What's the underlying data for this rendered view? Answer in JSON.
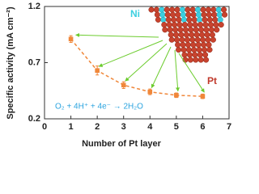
{
  "chart_data": {
    "type": "scatter",
    "x_label": "Number of Pt layer",
    "y_label": "Specific activity (mA cm⁻²)",
    "x": [
      1,
      2,
      3,
      4,
      5,
      6
    ],
    "series": [
      {
        "color": "#f0873a",
        "values": [
          0.91,
          0.63,
          0.5,
          0.44,
          0.41,
          0.4
        ],
        "errors": [
          0.03,
          0.04,
          0.03,
          0.025,
          0.02,
          0.02
        ]
      }
    ],
    "xlim": [
      0,
      7
    ],
    "xticks": [
      0,
      1,
      2,
      3,
      4,
      5,
      6,
      7
    ],
    "ylim": [
      0.2,
      1.2
    ],
    "yticks": [
      0.2,
      0.7,
      1.2
    ],
    "annotations": [
      "Ni",
      "Pt",
      "O₂ + 4H⁺ + 4e⁻ → 2H₂O"
    ]
  }
}
